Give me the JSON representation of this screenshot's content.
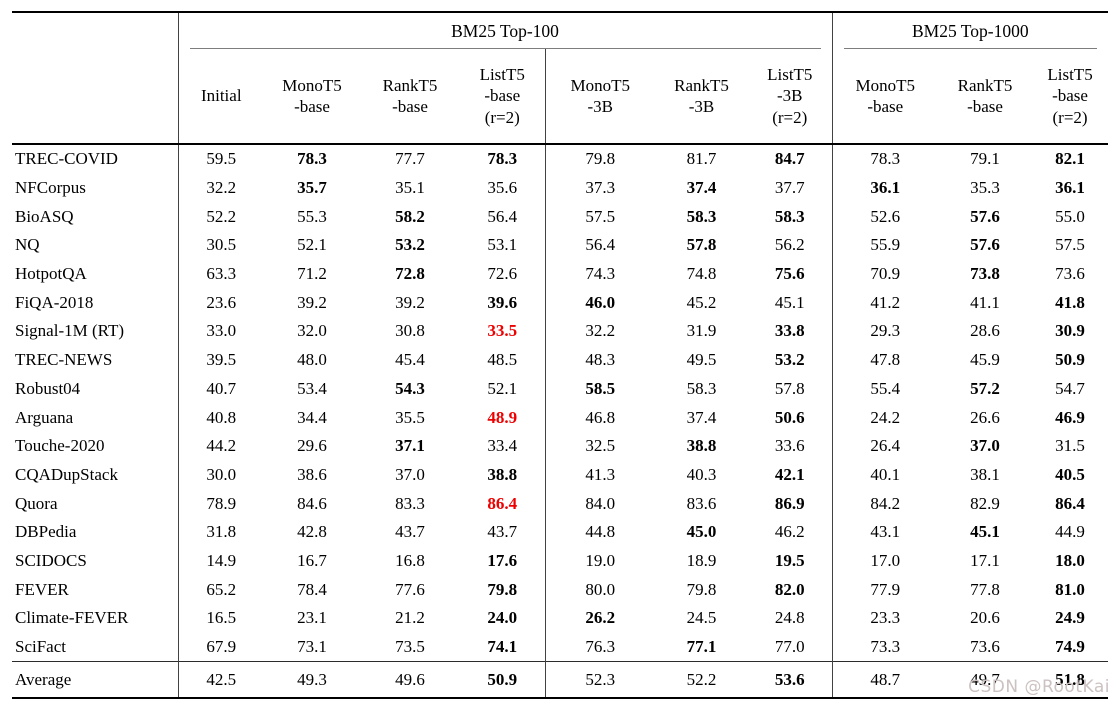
{
  "table": {
    "group_headers": [
      {
        "label": "BM25 Top-100",
        "colspan": 7
      },
      {
        "label": "BM25 Top-1000",
        "colspan": 3
      }
    ],
    "columns": [
      {
        "lines": [
          "Initial"
        ]
      },
      {
        "lines": [
          "MonoT5",
          "-base"
        ]
      },
      {
        "lines": [
          "RankT5",
          "-base"
        ]
      },
      {
        "lines": [
          "ListT5",
          "-base",
          "(r=2)"
        ]
      },
      {
        "lines": [
          "MonoT5",
          "-3B"
        ]
      },
      {
        "lines": [
          "RankT5",
          "-3B"
        ]
      },
      {
        "lines": [
          "ListT5",
          "-3B",
          "(r=2)"
        ]
      },
      {
        "lines": [
          "MonoT5",
          "-base"
        ]
      },
      {
        "lines": [
          "RankT5",
          "-base"
        ]
      },
      {
        "lines": [
          "ListT5",
          "-base",
          "(r=2)"
        ]
      }
    ],
    "rows": [
      {
        "name": "TREC-COVID",
        "values": [
          "59.5",
          "78.3",
          "77.7",
          "78.3",
          "79.8",
          "81.7",
          "84.7",
          "78.3",
          "79.1",
          "82.1"
        ],
        "bold": [
          1,
          3,
          6,
          9
        ],
        "red": []
      },
      {
        "name": "NFCorpus",
        "values": [
          "32.2",
          "35.7",
          "35.1",
          "35.6",
          "37.3",
          "37.4",
          "37.7",
          "36.1",
          "35.3",
          "36.1"
        ],
        "bold": [
          1,
          5,
          7,
          9
        ],
        "red": []
      },
      {
        "name": "BioASQ",
        "values": [
          "52.2",
          "55.3",
          "58.2",
          "56.4",
          "57.5",
          "58.3",
          "58.3",
          "52.6",
          "57.6",
          "55.0"
        ],
        "bold": [
          2,
          5,
          6,
          8
        ],
        "red": []
      },
      {
        "name": "NQ",
        "values": [
          "30.5",
          "52.1",
          "53.2",
          "53.1",
          "56.4",
          "57.8",
          "56.2",
          "55.9",
          "57.6",
          "57.5"
        ],
        "bold": [
          2,
          5,
          8
        ],
        "red": []
      },
      {
        "name": "HotpotQA",
        "values": [
          "63.3",
          "71.2",
          "72.8",
          "72.6",
          "74.3",
          "74.8",
          "75.6",
          "70.9",
          "73.8",
          "73.6"
        ],
        "bold": [
          2,
          6,
          8
        ],
        "red": []
      },
      {
        "name": "FiQA-2018",
        "values": [
          "23.6",
          "39.2",
          "39.2",
          "39.6",
          "46.0",
          "45.2",
          "45.1",
          "41.2",
          "41.1",
          "41.8"
        ],
        "bold": [
          3,
          4,
          9
        ],
        "red": []
      },
      {
        "name": "Signal-1M (RT)",
        "values": [
          "33.0",
          "32.0",
          "30.8",
          "33.5",
          "32.2",
          "31.9",
          "33.8",
          "29.3",
          "28.6",
          "30.9"
        ],
        "bold": [
          3,
          6,
          9
        ],
        "red": [
          3
        ]
      },
      {
        "name": "TREC-NEWS",
        "values": [
          "39.5",
          "48.0",
          "45.4",
          "48.5",
          "48.3",
          "49.5",
          "53.2",
          "47.8",
          "45.9",
          "50.9"
        ],
        "bold": [
          6,
          9
        ],
        "red": []
      },
      {
        "name": "Robust04",
        "values": [
          "40.7",
          "53.4",
          "54.3",
          "52.1",
          "58.5",
          "58.3",
          "57.8",
          "55.4",
          "57.2",
          "54.7"
        ],
        "bold": [
          2,
          4,
          8
        ],
        "red": []
      },
      {
        "name": "Arguana",
        "values": [
          "40.8",
          "34.4",
          "35.5",
          "48.9",
          "46.8",
          "37.4",
          "50.6",
          "24.2",
          "26.6",
          "46.9"
        ],
        "bold": [
          3,
          6,
          9
        ],
        "red": [
          3
        ]
      },
      {
        "name": "Touche-2020",
        "values": [
          "44.2",
          "29.6",
          "37.1",
          "33.4",
          "32.5",
          "38.8",
          "33.6",
          "26.4",
          "37.0",
          "31.5"
        ],
        "bold": [
          2,
          5,
          8
        ],
        "red": []
      },
      {
        "name": "CQADupStack",
        "values": [
          "30.0",
          "38.6",
          "37.0",
          "38.8",
          "41.3",
          "40.3",
          "42.1",
          "40.1",
          "38.1",
          "40.5"
        ],
        "bold": [
          3,
          6,
          9
        ],
        "red": []
      },
      {
        "name": "Quora",
        "values": [
          "78.9",
          "84.6",
          "83.3",
          "86.4",
          "84.0",
          "83.6",
          "86.9",
          "84.2",
          "82.9",
          "86.4"
        ],
        "bold": [
          3,
          6,
          9
        ],
        "red": [
          3
        ]
      },
      {
        "name": "DBPedia",
        "values": [
          "31.8",
          "42.8",
          "43.7",
          "43.7",
          "44.8",
          "45.0",
          "46.2",
          "43.1",
          "45.1",
          "44.9"
        ],
        "bold": [
          5,
          8
        ],
        "red": []
      },
      {
        "name": "SCIDOCS",
        "values": [
          "14.9",
          "16.7",
          "16.8",
          "17.6",
          "19.0",
          "18.9",
          "19.5",
          "17.0",
          "17.1",
          "18.0"
        ],
        "bold": [
          3,
          6,
          9
        ],
        "red": []
      },
      {
        "name": "FEVER",
        "values": [
          "65.2",
          "78.4",
          "77.6",
          "79.8",
          "80.0",
          "79.8",
          "82.0",
          "77.9",
          "77.8",
          "81.0"
        ],
        "bold": [
          3,
          6,
          9
        ],
        "red": []
      },
      {
        "name": "Climate-FEVER",
        "values": [
          "16.5",
          "23.1",
          "21.2",
          "24.0",
          "26.2",
          "24.5",
          "24.8",
          "23.3",
          "20.6",
          "24.9"
        ],
        "bold": [
          3,
          4,
          9
        ],
        "red": []
      },
      {
        "name": "SciFact",
        "values": [
          "67.9",
          "73.1",
          "73.5",
          "74.1",
          "76.3",
          "77.1",
          "77.0",
          "73.3",
          "73.6",
          "74.9"
        ],
        "bold": [
          3,
          5,
          9
        ],
        "red": []
      }
    ],
    "average": {
      "name": "Average",
      "values": [
        "42.5",
        "49.3",
        "49.6",
        "50.9",
        "52.3",
        "52.2",
        "53.6",
        "48.7",
        "49.7",
        "51.8"
      ],
      "bold": [
        3,
        6,
        9
      ],
      "red": []
    }
  },
  "watermark": "CSDN @RootKai",
  "colors": {
    "highlight_red": "#ee0000",
    "rule_dark": "#000000",
    "rule_gray": "#7d7d7d",
    "vertical_rule": "#424242",
    "watermark": "#cdc2c2"
  }
}
